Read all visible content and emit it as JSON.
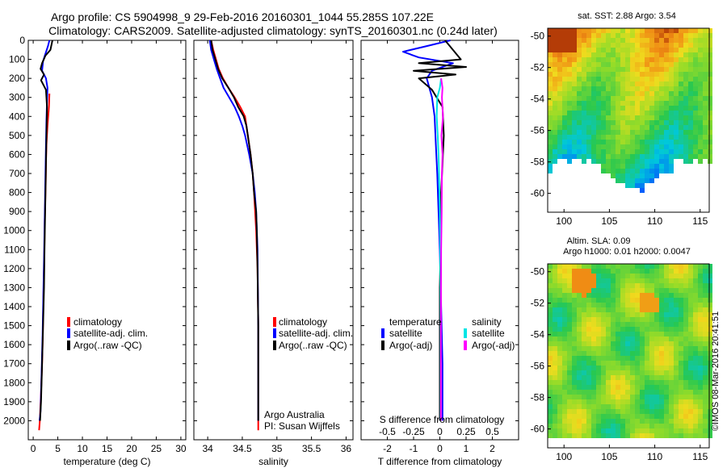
{
  "header": {
    "title_line1": "Argo profile: CS 5904998_9 29-Feb-2016 20160301_1044 55.285S 107.22E",
    "title_line2": "Climatology: CARS2009. Satellite-adjusted climatology: synTS_20160301.nc (0.24d later)"
  },
  "colors": {
    "climatology": "#ff0000",
    "satellite_adj": "#0000ff",
    "argo": "#000000",
    "satellite_diff": "#00e5e5",
    "argo_adj_salinity": "#ff00ff"
  },
  "chart_data": [
    {
      "id": "temperature",
      "type": "line",
      "xlabel": "temperature (deg C)",
      "xlim": [
        -1,
        31
      ],
      "xticks": [
        0,
        5,
        10,
        15,
        20,
        25,
        30
      ],
      "xtick_labels": [
        "0",
        "5",
        "10",
        "15",
        "20",
        "25",
        "30"
      ],
      "ylim": [
        0,
        2100
      ],
      "yreversed": true,
      "yticks": [
        0,
        100,
        200,
        300,
        400,
        500,
        600,
        700,
        800,
        900,
        1000,
        1100,
        1200,
        1300,
        1400,
        1500,
        1600,
        1700,
        1800,
        1900,
        2000
      ],
      "legend": [
        "climatology",
        "satellite-adj. clim.",
        "Argo(..raw -QC)"
      ],
      "series": [
        {
          "name": "climatology",
          "color": "#ff0000",
          "x": [
            3.3,
            3.2,
            2.9,
            2.7,
            2.6,
            2.55,
            2.45,
            2.35,
            2.3,
            2.25,
            2.15,
            2.05,
            1.95,
            1.8,
            1.6,
            1.35,
            1.2
          ],
          "y": [
            280,
            350,
            450,
            550,
            650,
            750,
            850,
            950,
            1050,
            1150,
            1250,
            1400,
            1550,
            1700,
            1850,
            2000,
            2050
          ]
        },
        {
          "name": "satellite-adj. clim.",
          "color": "#0000ff",
          "x": [
            3.3,
            3.0,
            2.5,
            2.0,
            1.8,
            2.6,
            2.9,
            2.8,
            2.7,
            2.6,
            2.5,
            2.4,
            2.3,
            2.2,
            2.05,
            1.9,
            1.7,
            1.5,
            1.3
          ],
          "y": [
            0,
            30,
            70,
            110,
            160,
            200,
            250,
            320,
            420,
            550,
            700,
            850,
            1000,
            1150,
            1350,
            1550,
            1750,
            1950,
            2000
          ]
        },
        {
          "name": "Argo(..raw -QC)",
          "color": "#000000",
          "x": [
            3.9,
            3.5,
            2.5,
            1.8,
            1.5,
            2.2,
            1.6,
            2.6,
            2.8,
            2.7,
            2.6,
            2.5,
            2.4,
            2.3,
            2.2,
            2.0,
            1.8,
            1.6,
            1.4
          ],
          "y": [
            0,
            50,
            80,
            120,
            150,
            180,
            210,
            260,
            350,
            500,
            650,
            800,
            950,
            1100,
            1300,
            1500,
            1700,
            1900,
            2000
          ]
        }
      ]
    },
    {
      "id": "salinity",
      "type": "line",
      "xlabel": "salinity",
      "xlim": [
        33.8,
        36.1
      ],
      "xticks": [
        34,
        34.5,
        35,
        35.5,
        36
      ],
      "xtick_labels": [
        "34",
        "34.5",
        "35",
        "35.5",
        "36"
      ],
      "ylim": [
        0,
        2100
      ],
      "yreversed": true,
      "legend": [
        "climatology",
        "satellite-adj. clim.",
        "Argo(..raw -QC)"
      ],
      "annotations": [
        "Argo Australia",
        "PI: Susan Wijffels"
      ],
      "series": [
        {
          "name": "climatology",
          "color": "#ff0000",
          "x": [
            34.05,
            34.08,
            34.12,
            34.16,
            34.22,
            34.3,
            34.39,
            34.47,
            34.54,
            34.58,
            34.62,
            34.65,
            34.67,
            34.7,
            34.72,
            34.73,
            34.73,
            34.73
          ],
          "y": [
            0,
            50,
            100,
            150,
            200,
            250,
            300,
            350,
            400,
            500,
            600,
            700,
            800,
            1000,
            1200,
            1500,
            1800,
            2050
          ]
        },
        {
          "name": "satellite-adj. clim.",
          "color": "#0000ff",
          "x": [
            34.03,
            34.05,
            34.09,
            34.13,
            34.18,
            34.23,
            34.31,
            34.39,
            34.45,
            34.5,
            34.54,
            34.6,
            34.65,
            34.68,
            34.7,
            34.72,
            34.73,
            34.73
          ],
          "y": [
            0,
            50,
            100,
            150,
            200,
            250,
            300,
            350,
            400,
            450,
            500,
            600,
            700,
            800,
            900,
            1100,
            1500,
            2000
          ]
        },
        {
          "name": "Argo(..raw -QC)",
          "color": "#000000",
          "x": [
            34.05,
            34.07,
            34.11,
            34.15,
            34.21,
            34.3,
            34.38,
            34.44,
            34.52,
            34.56,
            34.58,
            34.62,
            34.65,
            34.67,
            34.7,
            34.71,
            34.72,
            34.73,
            34.73
          ],
          "y": [
            0,
            50,
            100,
            150,
            200,
            250,
            300,
            350,
            400,
            450,
            500,
            600,
            700,
            800,
            900,
            1000,
            1200,
            1500,
            2000
          ]
        }
      ]
    },
    {
      "id": "difference",
      "type": "line",
      "xlabel": "T difference from climatology",
      "top_axis_label": "S difference from climatology",
      "xlim": [
        -3,
        3
      ],
      "xticks": [
        -2,
        -1,
        0,
        1,
        2
      ],
      "xtick_labels": [
        "-2",
        "-1",
        "0",
        "1",
        "2"
      ],
      "top_xlim": [
        -0.75,
        0.75
      ],
      "top_xticks": [
        -0.5,
        -0.25,
        0,
        0.25,
        0.5
      ],
      "top_xtick_labels": [
        "-0.5",
        "-0.25",
        "0",
        "0.25",
        "0.5"
      ],
      "ylim": [
        0,
        2100
      ],
      "yreversed": true,
      "legend_titles": [
        "temperature",
        "salinity"
      ],
      "legend": [
        "satellite",
        "Argo(-adj)",
        "satellite",
        "Argo(-adj)"
      ],
      "series": [
        {
          "name": "satellite",
          "group": "temperature",
          "color": "#0000ff",
          "x": [
            0.4,
            -0.5,
            -1.4,
            -0.8,
            0.5,
            -0.3,
            -0.5,
            -0.3,
            -0.2,
            -0.15,
            -0.1,
            -0.05,
            0.0,
            0.05,
            0.1,
            0.1
          ],
          "y": [
            0,
            30,
            60,
            90,
            120,
            160,
            200,
            300,
            400,
            550,
            700,
            900,
            1100,
            1400,
            1700,
            2000
          ]
        },
        {
          "name": "Argo(-adj)",
          "group": "temperature",
          "color": "#000000",
          "x": [
            0.2,
            0.8,
            -0.8,
            1.0,
            -1.0,
            0.6,
            -0.8,
            -0.3,
            0.1,
            0.15,
            0.1,
            0.05,
            0.05,
            0.0,
            0.0,
            0.0
          ],
          "y": [
            0,
            100,
            120,
            140,
            160,
            180,
            200,
            260,
            350,
            500,
            650,
            800,
            1000,
            1300,
            1600,
            2000
          ]
        },
        {
          "name": "satellite",
          "group": "salinity",
          "color": "#00e5e5",
          "x": [
            0.05,
            0.0,
            -0.1,
            -0.12,
            -0.08,
            -0.05,
            -0.03,
            0.0,
            0.02,
            0.03,
            0.03
          ],
          "y": [
            200,
            250,
            300,
            400,
            500,
            600,
            700,
            900,
            1100,
            1500,
            2000
          ]
        },
        {
          "name": "Argo(-adj)",
          "group": "salinity",
          "color": "#ff00ff",
          "x": [
            0.05,
            0.1,
            0.08,
            0.12,
            0.06,
            0.1,
            0.08,
            0.07,
            0.05,
            0.04,
            0.04
          ],
          "y": [
            200,
            250,
            300,
            400,
            500,
            600,
            700,
            900,
            1100,
            1500,
            2000
          ]
        }
      ]
    },
    {
      "id": "sst_map",
      "type": "heatmap",
      "title": "sat. SST: 2.88 Argo: 3.54",
      "xticks": [
        100,
        105,
        110,
        115
      ],
      "xtick_labels": [
        "100",
        "105",
        "110",
        "115"
      ],
      "yticks": [
        -50,
        -52,
        -54,
        -56,
        -58,
        -60
      ],
      "ytick_labels": [
        "-50",
        "-52",
        "-54",
        "-56",
        "-58",
        "-60"
      ],
      "xlim": [
        98.2,
        116
      ],
      "ylim": [
        -61.2,
        -49.5
      ]
    },
    {
      "id": "sla_map",
      "type": "heatmap",
      "title": "Altim. SLA: 0.09",
      "subtitle": "Argo h1000: 0.01 h2000: 0.0047",
      "xticks": [
        100,
        105,
        110,
        115
      ],
      "xtick_labels": [
        "100",
        "105",
        "110",
        "115"
      ],
      "yticks": [
        -50,
        -52,
        -54,
        -56,
        -58,
        -60
      ],
      "ytick_labels": [
        "-50",
        "-52",
        "-54",
        "-56",
        "-58",
        "-60"
      ],
      "xlim": [
        98.2,
        116
      ],
      "ylim": [
        -61.2,
        -49.5
      ]
    }
  ],
  "footer": {
    "stamp": "©IMOS 08-Mar-2016 20:41:51"
  }
}
